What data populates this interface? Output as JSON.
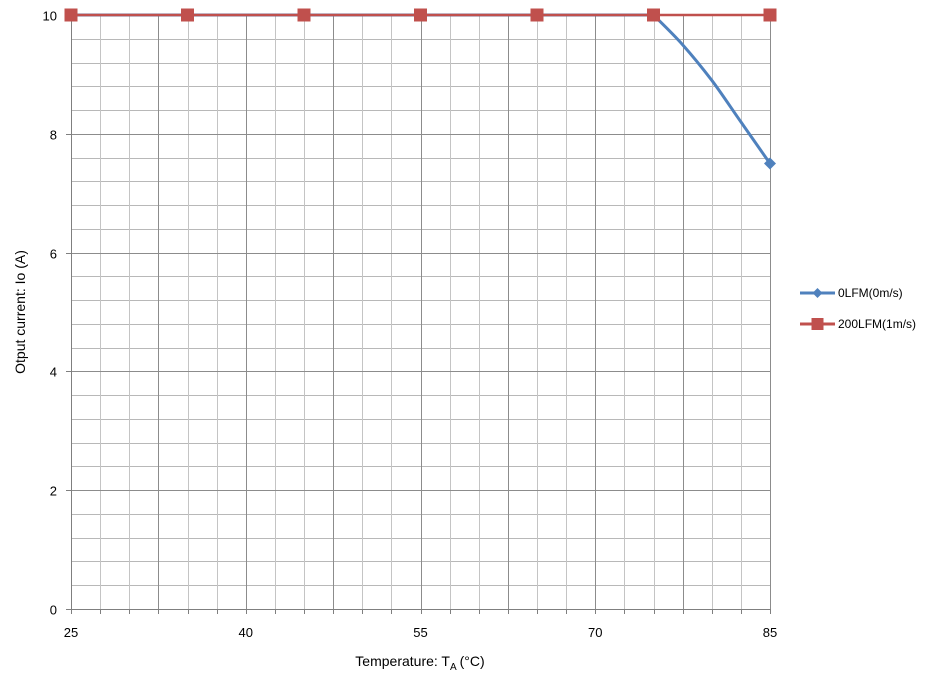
{
  "chart_data": {
    "type": "line",
    "title": "",
    "xlabel": "Temperature: T",
    "xlabel_subscript": "A",
    "xlabel_unit": "(°C)",
    "ylabel": "Otput current: Io (A)",
    "xlim": [
      25,
      85
    ],
    "ylim": [
      0,
      10
    ],
    "x_ticks": [
      "25",
      "40",
      "55",
      "70",
      "85"
    ],
    "x_tick_values": [
      25,
      40,
      55,
      70,
      85
    ],
    "y_ticks": [
      "0",
      "2",
      "4",
      "6",
      "8",
      "10"
    ],
    "y_tick_values": [
      0,
      2,
      4,
      6,
      8,
      10
    ],
    "x_minor_step": 2.5,
    "x_major_step": 7.5,
    "y_minor_step": 0.4,
    "grid": true,
    "legend_position": "right",
    "series": [
      {
        "name": "0LFM(0m/s)",
        "color": "#4f81bd",
        "marker": "diamond",
        "x": [
          25,
          35,
          45,
          55,
          65,
          75,
          85
        ],
        "y": [
          10,
          10,
          10,
          10,
          10,
          10,
          7.5
        ],
        "curve": [
          [
            75,
            10
          ],
          [
            77.5,
            9.5
          ],
          [
            80,
            8.9
          ],
          [
            82.5,
            8.2
          ],
          [
            85,
            7.5
          ]
        ]
      },
      {
        "name": "200LFM(1m/s)",
        "color": "#c0504d",
        "marker": "square",
        "x": [
          25,
          35,
          45,
          55,
          65,
          75,
          85
        ],
        "y": [
          10,
          10,
          10,
          10,
          10,
          10,
          10
        ]
      }
    ]
  }
}
